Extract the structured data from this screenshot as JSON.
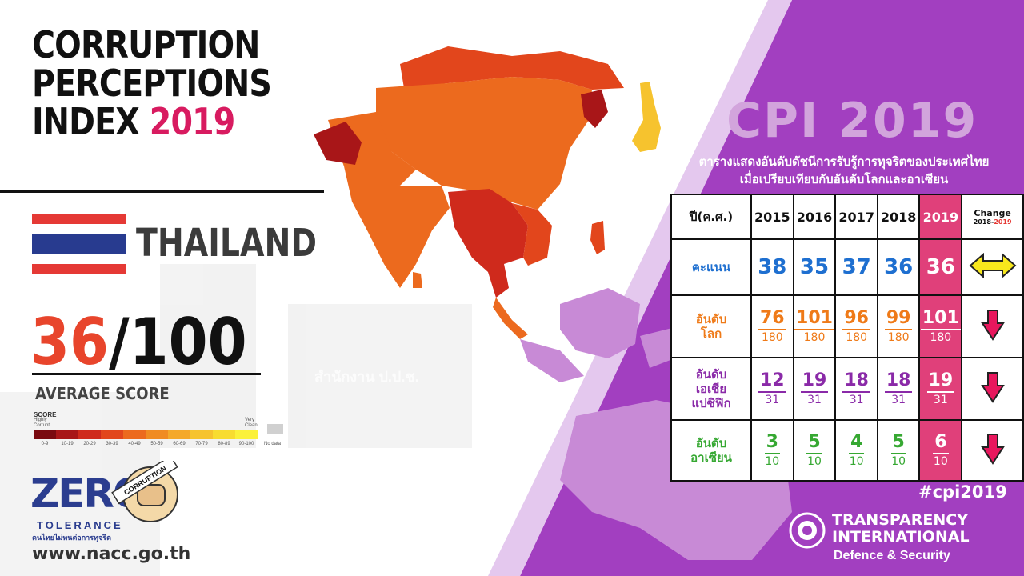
{
  "colors": {
    "purple": "#a23fc0",
    "lavender": "#e4c8ee",
    "pink": "#e0407a",
    "score_red": "#e8452c",
    "blue_score": "#1e6fd0",
    "world_orange": "#ef7a18",
    "asia_purple": "#8a2aa8",
    "asean_green": "#36a832"
  },
  "header": {
    "title_line1": "CORRUPTION",
    "title_line2": "PERCEPTIONS",
    "title_line3": "INDEX",
    "title_year": "2019"
  },
  "country": "THAILAND",
  "score": {
    "value": "36",
    "max": "/100",
    "label": "AVERAGE SCORE"
  },
  "legend": {
    "title": "SCORE",
    "low_label": "Highly Corrupt",
    "high_label": "Very Clean",
    "ranges": [
      "0-9",
      "10-19",
      "20-29",
      "30-39",
      "40-49",
      "50-59",
      "60-69",
      "70-79",
      "80-89",
      "90-100"
    ],
    "colors": [
      "#7a0a10",
      "#a81618",
      "#cf2a1c",
      "#e2461c",
      "#ec6a1e",
      "#f08b22",
      "#f4a82a",
      "#f6c32e",
      "#f8dc30",
      "#fbf13a"
    ],
    "no_data": "No data"
  },
  "zero": {
    "logo_text": "ZER",
    "logo_o": "O",
    "tolerance": "TOLERANCE",
    "thai_tagline": "คนไทยไม่ทนต่อการทุจริต",
    "stamp_word1": "CORRUPTION",
    "website": "www.nacc.go.th"
  },
  "watermark": "สำนักงาน ป.ป.ช.",
  "cpi_title": "CPI 2019",
  "subtitle_line1": "ตารางแสดงอันดับดัชนีการรับรู้การทุจริตของประเทศไทย",
  "subtitle_line2": "เมื่อเปรียบเทียบกับอันดับโลกและอาเซียน",
  "table": {
    "header_label": "ปี(ค.ศ.)",
    "years": [
      "2015",
      "2016",
      "2017",
      "2018",
      "2019"
    ],
    "change_label": "Change",
    "change_from": "2018",
    "change_to": "2019",
    "rows": {
      "score": {
        "label": "คะแนน",
        "values": [
          "38",
          "35",
          "37",
          "36",
          "36"
        ],
        "change": "unchanged"
      },
      "world": {
        "label1": "อันดับ",
        "label2": "โลก",
        "ranks": [
          "76",
          "101",
          "96",
          "99",
          "101"
        ],
        "total": "180",
        "change": "down"
      },
      "asia": {
        "label1": "อันดับ",
        "label2": "เอเชีย",
        "label3": "แปซิฟิก",
        "ranks": [
          "12",
          "19",
          "18",
          "18",
          "19"
        ],
        "total": "31",
        "change": "down"
      },
      "asean": {
        "label1": "อันดับ",
        "label2": "อาเซียน",
        "ranks": [
          "3",
          "5",
          "4",
          "5",
          "6"
        ],
        "total": "10",
        "change": "down"
      }
    }
  },
  "hashtag": "#cpi2019",
  "ti": {
    "line1": "TRANSPARENCY",
    "line2": "INTERNATIONAL",
    "sub": "Defence & Security"
  }
}
